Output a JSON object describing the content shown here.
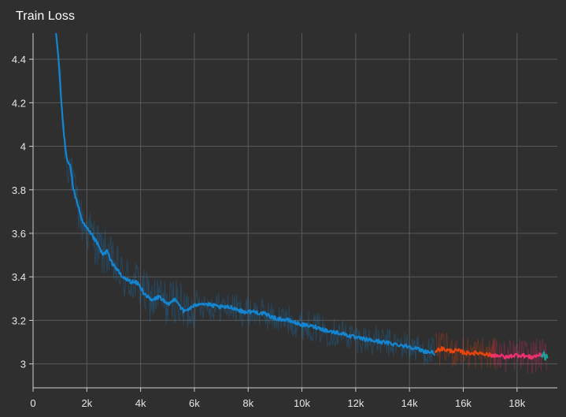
{
  "chart_data": {
    "type": "line",
    "title": "Train Loss",
    "xlabel": "",
    "ylabel": "",
    "xlim": [
      0,
      19500
    ],
    "ylim": [
      2.89,
      4.52
    ],
    "grid": true,
    "x_ticks": [
      {
        "value": 0,
        "label": "0"
      },
      {
        "value": 2000,
        "label": "2k"
      },
      {
        "value": 4000,
        "label": "4k"
      },
      {
        "value": 6000,
        "label": "6k"
      },
      {
        "value": 8000,
        "label": "8k"
      },
      {
        "value": 10000,
        "label": "10k"
      },
      {
        "value": 12000,
        "label": "12k"
      },
      {
        "value": 14000,
        "label": "14k"
      },
      {
        "value": 16000,
        "label": "16k"
      },
      {
        "value": 18000,
        "label": "18k"
      }
    ],
    "y_ticks": [
      {
        "value": 3.0,
        "label": "3"
      },
      {
        "value": 3.2,
        "label": "3.2"
      },
      {
        "value": 3.4,
        "label": "3.4"
      },
      {
        "value": 3.6,
        "label": "3.6"
      },
      {
        "value": 3.8,
        "label": "3.8"
      },
      {
        "value": 4.0,
        "label": "4"
      },
      {
        "value": 4.2,
        "label": "4.2"
      },
      {
        "value": 4.4,
        "label": "4.4"
      }
    ],
    "series": [
      {
        "color": "#1485d0",
        "noise": 0.07,
        "points": [
          [
            850,
            4.52
          ],
          [
            950,
            4.4
          ],
          [
            1050,
            4.2
          ],
          [
            1150,
            4.05
          ],
          [
            1250,
            3.95
          ],
          [
            1400,
            3.9
          ],
          [
            1500,
            3.8
          ],
          [
            1650,
            3.74
          ],
          [
            1800,
            3.66
          ],
          [
            2000,
            3.62
          ],
          [
            2200,
            3.59
          ],
          [
            2400,
            3.55
          ],
          [
            2600,
            3.5
          ],
          [
            2750,
            3.52
          ],
          [
            2900,
            3.47
          ],
          [
            3100,
            3.44
          ],
          [
            3300,
            3.4
          ],
          [
            3600,
            3.38
          ],
          [
            3900,
            3.37
          ],
          [
            4100,
            3.33
          ],
          [
            4400,
            3.29
          ],
          [
            4700,
            3.31
          ],
          [
            5000,
            3.27
          ],
          [
            5300,
            3.3
          ],
          [
            5600,
            3.24
          ],
          [
            5900,
            3.26
          ],
          [
            6200,
            3.28
          ],
          [
            6600,
            3.27
          ],
          [
            7000,
            3.26
          ],
          [
            7400,
            3.26
          ],
          [
            7800,
            3.24
          ],
          [
            8200,
            3.24
          ],
          [
            8600,
            3.23
          ],
          [
            9000,
            3.21
          ],
          [
            9500,
            3.2
          ],
          [
            10000,
            3.18
          ],
          [
            10500,
            3.17
          ],
          [
            11000,
            3.15
          ],
          [
            11500,
            3.14
          ],
          [
            12000,
            3.12
          ],
          [
            12500,
            3.11
          ],
          [
            13000,
            3.1
          ],
          [
            13500,
            3.09
          ],
          [
            14000,
            3.08
          ],
          [
            14500,
            3.06
          ],
          [
            14950,
            3.05
          ]
        ]
      },
      {
        "color": "#e8450c",
        "noise": 0.08,
        "points": [
          [
            14950,
            3.06
          ],
          [
            15200,
            3.07
          ],
          [
            15500,
            3.06
          ],
          [
            15800,
            3.06
          ],
          [
            16100,
            3.05
          ],
          [
            16400,
            3.05
          ],
          [
            16700,
            3.05
          ],
          [
            17000,
            3.04
          ],
          [
            17200,
            3.04
          ]
        ]
      },
      {
        "color": "#f0306f",
        "noise": 0.08,
        "points": [
          [
            17000,
            3.04
          ],
          [
            17300,
            3.04
          ],
          [
            17600,
            3.03
          ],
          [
            17900,
            3.04
          ],
          [
            18200,
            3.04
          ],
          [
            18500,
            3.03
          ],
          [
            18800,
            3.04
          ],
          [
            19100,
            3.04
          ]
        ]
      },
      {
        "color": "#16a39a",
        "noise": 0.02,
        "points": [
          [
            18900,
            3.03
          ],
          [
            19000,
            3.05
          ],
          [
            19050,
            3.02
          ],
          [
            19100,
            3.04
          ],
          [
            19150,
            3.03
          ]
        ]
      }
    ]
  }
}
